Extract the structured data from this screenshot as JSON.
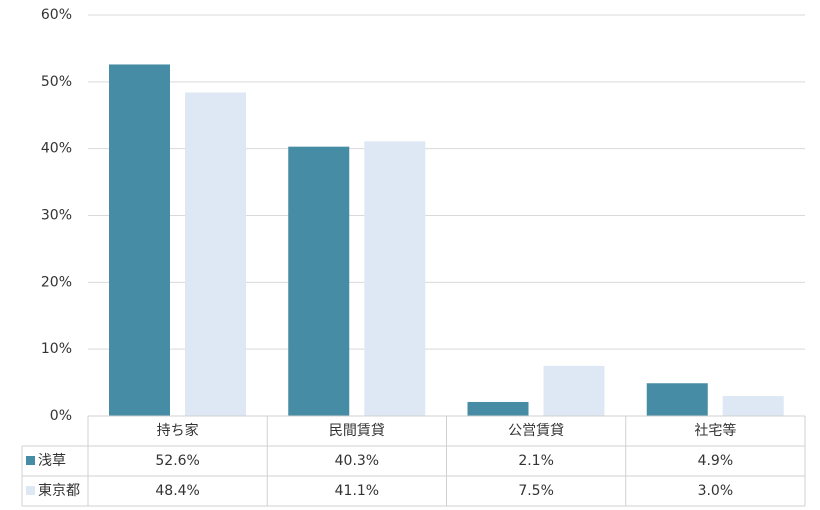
{
  "chart_data": {
    "type": "bar",
    "categories": [
      "持ち家",
      "民間賃貸",
      "公営賃貸",
      "社宅等"
    ],
    "series": [
      {
        "name": "浅草",
        "color": "#468ca4",
        "values": [
          52.6,
          40.3,
          2.1,
          4.9
        ],
        "value_labels": [
          "52.6%",
          "40.3%",
          "2.1%",
          "4.9%"
        ]
      },
      {
        "name": "東京都",
        "color": "#dde8f4",
        "values": [
          48.4,
          41.1,
          7.5,
          3.0
        ],
        "value_labels": [
          "48.4%",
          "41.1%",
          "7.5%",
          "3.0%"
        ]
      }
    ],
    "ylim": [
      0,
      60
    ],
    "yticks": [
      {
        "value": 0,
        "label": "0%"
      },
      {
        "value": 10,
        "label": "10%"
      },
      {
        "value": 20,
        "label": "20%"
      },
      {
        "value": 30,
        "label": "30%"
      },
      {
        "value": 40,
        "label": "40%"
      },
      {
        "value": 50,
        "label": "50%"
      },
      {
        "value": 60,
        "label": "60%"
      }
    ],
    "grid": true
  }
}
